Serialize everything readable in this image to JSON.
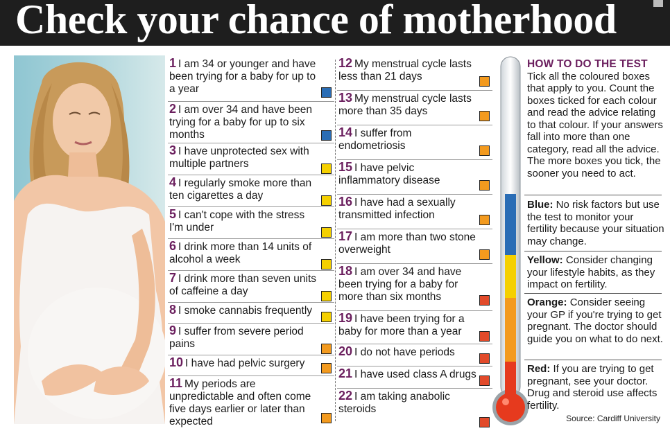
{
  "title": "Check your chance of motherhood",
  "colors": {
    "blue": "#2a6db5",
    "yellow": "#f5d000",
    "orange": "#f39a1e",
    "red": "#e24a2a",
    "accent": "#6b1f5e",
    "header": "#1e1e1e"
  },
  "items": [
    {
      "num": "1",
      "text": "I am 34 or younger and have been trying for a baby for up to a year",
      "color": "blue"
    },
    {
      "num": "2",
      "text": "I am over 34 and have been trying for a baby for up to six months",
      "color": "blue"
    },
    {
      "num": "3",
      "text": "I have unprotected sex with multiple partners",
      "color": "yellow"
    },
    {
      "num": "4",
      "text": "I regularly smoke more than ten cigarettes a day",
      "color": "yellow"
    },
    {
      "num": "5",
      "text": "I can't cope with the stress I'm under",
      "color": "yellow"
    },
    {
      "num": "6",
      "text": "I drink more than 14 units of alcohol a week",
      "color": "yellow"
    },
    {
      "num": "7",
      "text": "I drink more than seven units of caffeine a day",
      "color": "yellow"
    },
    {
      "num": "8",
      "text": "I smoke cannabis frequently",
      "color": "yellow"
    },
    {
      "num": "9",
      "text": "I suffer from severe period pains",
      "color": "orange"
    },
    {
      "num": "10",
      "text": "I have had pelvic surgery",
      "color": "orange"
    },
    {
      "num": "11",
      "text": "My periods are unpredictable and often come five days earlier or later than expected",
      "color": "orange"
    },
    {
      "num": "12",
      "text": "My menstrual cycle lasts less than 21 days",
      "color": "orange"
    },
    {
      "num": "13",
      "text": "My menstrual cycle lasts more than 35 days",
      "color": "orange"
    },
    {
      "num": "14",
      "text": "I suffer from endometriosis",
      "color": "orange"
    },
    {
      "num": "15",
      "text": "I have pelvic inflammatory disease",
      "color": "orange"
    },
    {
      "num": "16",
      "text": "I have had a sexually transmitted infection",
      "color": "orange"
    },
    {
      "num": "17",
      "text": "I am more than two stone overweight",
      "color": "orange"
    },
    {
      "num": "18",
      "text": "I am over 34 and have been trying for a baby for more than six months",
      "color": "red"
    },
    {
      "num": "19",
      "text": "I have been trying for a baby for more than a year",
      "color": "red"
    },
    {
      "num": "20",
      "text": "I do not have periods",
      "color": "red"
    },
    {
      "num": "21",
      "text": "I have used class A drugs",
      "color": "red"
    },
    {
      "num": "22",
      "text": "I am taking anabolic steroids",
      "color": "red"
    }
  ],
  "howto": {
    "title": "HOW TO DO THE TEST",
    "body": "Tick all the coloured boxes that apply to you. Count the boxes ticked for each colour and read the advice relating to that colour. If your answers fall into more than one category, read all the advice. The more boxes you tick, the sooner you need to act."
  },
  "advice": {
    "blue": {
      "label": "Blue:",
      "text": "No risk factors but use the test to monitor your fertility because your situation may change."
    },
    "yellow": {
      "label": "Yellow:",
      "text": "Consider changing your lifestyle habits, as they impact on fertility."
    },
    "orange": {
      "label": "Orange:",
      "text": "Consider seeing your GP if you're trying to get pregnant. The doctor should guide you on what to do next."
    },
    "red": {
      "label": "Red:",
      "text": "If you are trying to get pregnant, see your doctor. Drug and steroid use affects fertility."
    }
  },
  "source": "Source: Cardiff University"
}
